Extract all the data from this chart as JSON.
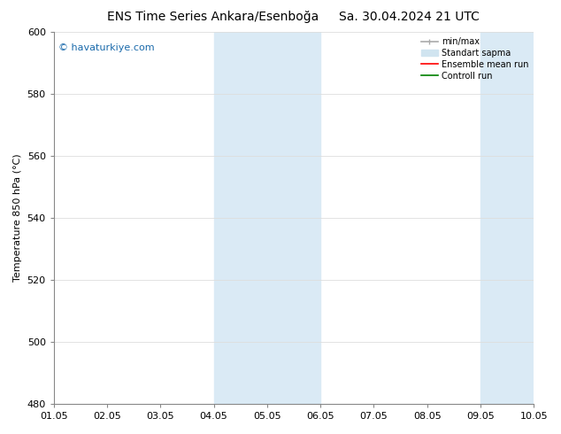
{
  "title_left": "ENS Time Series Ankara/Esenboğa",
  "title_right": "Sa. 30.04.2024 21 UTC",
  "ylabel": "Temperature 850 hPa (°C)",
  "ylim": [
    480,
    600
  ],
  "yticks": [
    480,
    500,
    520,
    540,
    560,
    580,
    600
  ],
  "x_labels": [
    "01.05",
    "02.05",
    "03.05",
    "04.05",
    "05.05",
    "06.05",
    "07.05",
    "08.05",
    "09.05",
    "10.05"
  ],
  "watermark": "© havaturkiye.com",
  "bg_color": "#ffffff",
  "plot_bg_color": "#ffffff",
  "shaded_regions": [
    {
      "xstart": 3.0,
      "xend": 5.0,
      "color": "#daeaf5"
    },
    {
      "xstart": 8.0,
      "xend": 9.0,
      "color": "#daeaf5"
    }
  ],
  "legend_items": [
    {
      "label": "min/max",
      "color": "#aaaaaa",
      "lw": 1.2
    },
    {
      "label": "Standart sapma",
      "color": "#d0e4f0",
      "lw": 8
    },
    {
      "label": "Ensemble mean run",
      "color": "#ff0000",
      "lw": 1.2
    },
    {
      "label": "Controll run",
      "color": "#008000",
      "lw": 1.2
    }
  ],
  "title_fontsize": 10,
  "axis_fontsize": 8,
  "tick_fontsize": 8,
  "watermark_color": "#1a6aab",
  "watermark_fontsize": 8,
  "grid_color": "#dddddd",
  "spine_color": "#888888"
}
